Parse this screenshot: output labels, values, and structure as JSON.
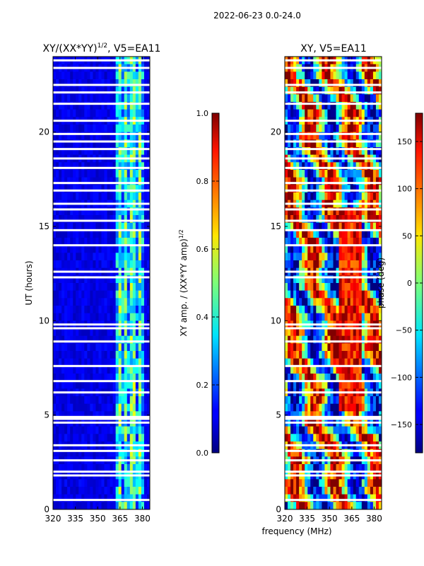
{
  "figure_title": "2022-06-23 0.0-24.0",
  "chart_data": [
    {
      "type": "heatmap",
      "title_prefix": "XY/(XX*YY)",
      "title_exponent": "1/2",
      "title_suffix": ", V5=EA11",
      "xlabel": "",
      "ylabel": "UT (hours)",
      "xlim": [
        320,
        385
      ],
      "ylim": [
        0,
        24
      ],
      "xticks": [
        320,
        335,
        350,
        365,
        380
      ],
      "yticks": [
        0,
        5,
        10,
        15,
        20
      ],
      "colorbar": {
        "label_prefix": "XY amp. / (XX*YY amp)",
        "label_exponent": "1/2",
        "range": [
          0.0,
          1.0
        ],
        "ticks": [
          "0.0",
          "0.2",
          "0.4",
          "0.6",
          "0.8",
          "1.0"
        ]
      },
      "bright_band_mhz": [
        362,
        381
      ],
      "flagged_rows_ut": [
        0.5,
        1.8,
        2.0,
        2.6,
        3.1,
        3.4,
        4.6,
        4.8,
        4.9,
        6.2,
        6.8,
        7.6,
        8.9,
        9.6,
        9.8,
        12.3,
        12.6,
        14.0,
        14.8,
        15.3,
        15.9,
        16.2,
        16.9,
        17.3,
        18.1,
        18.6,
        19.1,
        19.5,
        19.9,
        20.6,
        21.5,
        22.1,
        22.5,
        23.4,
        23.8
      ]
    },
    {
      "type": "heatmap",
      "title": "XY, V5=EA11",
      "xlabel": "frequency (MHz)",
      "ylabel": "",
      "xlim": [
        320,
        385
      ],
      "ylim": [
        0,
        24
      ],
      "xticks": [
        320,
        335,
        350,
        365,
        380
      ],
      "yticks": [
        0,
        5,
        10,
        15,
        20
      ],
      "colorbar": {
        "label": "phase (deg)",
        "range": [
          -180,
          180
        ],
        "ticks": [
          "−150",
          "−100",
          "−50",
          "0",
          "50",
          "100",
          "150"
        ]
      },
      "flagged_rows_ut": [
        0.5,
        1.8,
        2.0,
        2.6,
        3.1,
        3.4,
        4.6,
        4.8,
        4.9,
        6.2,
        6.8,
        7.6,
        8.9,
        9.6,
        9.8,
        12.3,
        12.6,
        14.0,
        14.8,
        15.3,
        15.9,
        16.2,
        16.9,
        17.3,
        18.1,
        18.6,
        19.1,
        19.5,
        19.9,
        20.6,
        21.5,
        22.1,
        22.5,
        23.4,
        23.8
      ]
    }
  ],
  "colors": {
    "background": "#ffffff",
    "axis": "#000000",
    "flagged": "#ffffff"
  }
}
